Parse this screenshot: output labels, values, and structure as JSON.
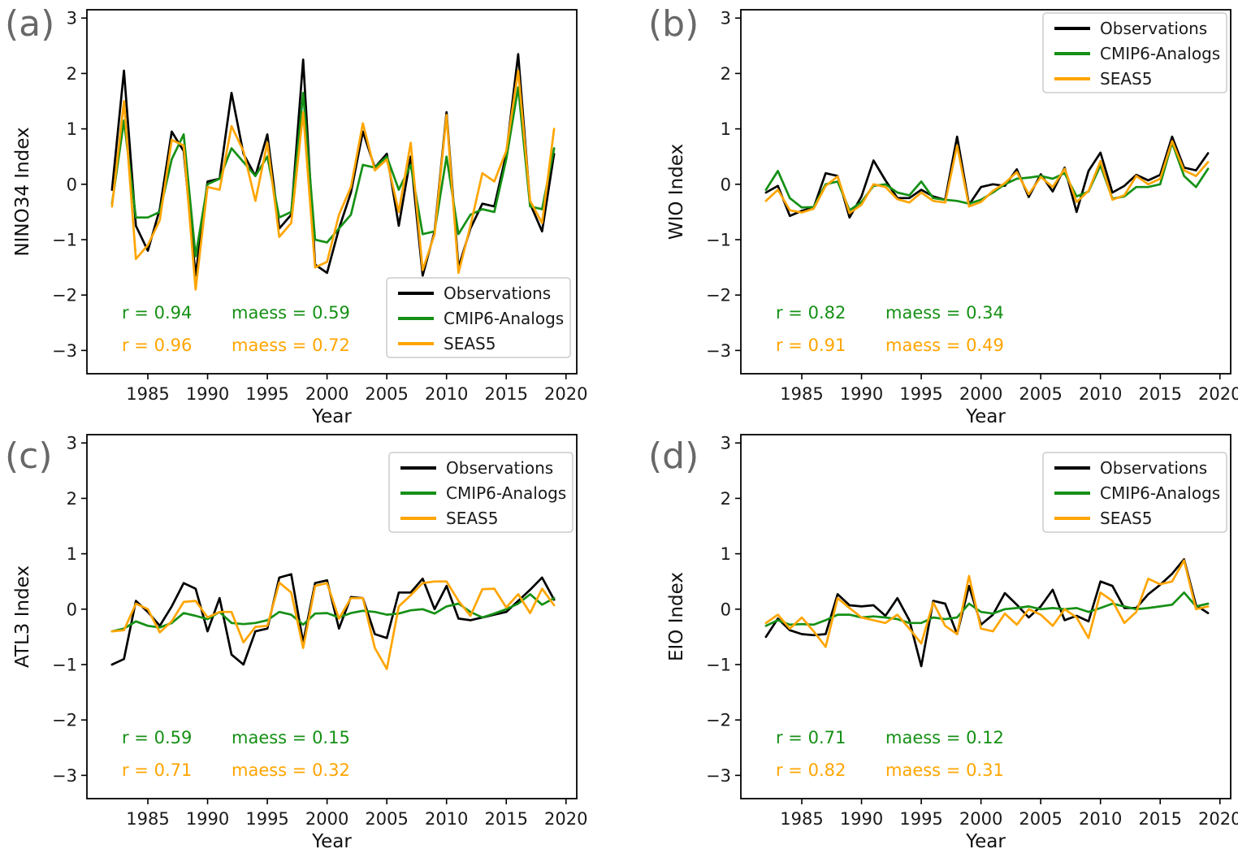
{
  "figure": {
    "xlabel": "Year",
    "x_ticks": [
      1985,
      1990,
      1995,
      2000,
      2005,
      2010,
      2015,
      2020
    ],
    "y_ticks": [
      -3,
      -2,
      -1,
      0,
      1,
      2,
      3
    ],
    "xlim": [
      1979.9,
      2020.9
    ],
    "ylim": [
      -3.42,
      3.15
    ],
    "grid": false,
    "colors": {
      "observations": "#000000",
      "cmip6": "#159015",
      "seas5": "#FFA500",
      "panel_letter": "#686868",
      "legend_border": "#cccccc",
      "tick_text": "#1a1a1a"
    },
    "legend_entries": [
      "Observations",
      "CMIP6-Analogs",
      "SEAS5"
    ],
    "years": [
      1982,
      1983,
      1984,
      1985,
      1986,
      1987,
      1988,
      1989,
      1990,
      1991,
      1992,
      1993,
      1994,
      1995,
      1996,
      1997,
      1998,
      1999,
      2000,
      2001,
      2002,
      2003,
      2004,
      2005,
      2006,
      2007,
      2008,
      2009,
      2010,
      2011,
      2012,
      2013,
      2014,
      2015,
      2016,
      2017,
      2018,
      2019
    ]
  },
  "chart_data": [
    {
      "type": "line",
      "panel_label": "(a)",
      "ylabel": "NINO34 Index",
      "xlabel": "Year",
      "legend_position": "lower-right",
      "stats": {
        "green_r": "r = 0.94",
        "green_maess": "maess = 0.59",
        "orange_r": "r = 0.96",
        "orange_maess": "maess = 0.72"
      },
      "series": [
        {
          "name": "Observations",
          "color_key": "observations",
          "values": [
            -0.1,
            2.05,
            -0.75,
            -1.2,
            -0.45,
            0.95,
            0.6,
            -1.65,
            0.05,
            0.1,
            1.65,
            0.55,
            0.15,
            0.9,
            -0.8,
            -0.55,
            2.25,
            -1.45,
            -1.6,
            -0.8,
            -0.15,
            0.95,
            0.3,
            0.55,
            -0.75,
            0.5,
            -1.65,
            -0.85,
            1.3,
            -1.5,
            -0.8,
            -0.35,
            -0.4,
            0.55,
            2.35,
            -0.35,
            -0.85,
            0.55
          ]
        },
        {
          "name": "CMIP6-Analogs",
          "color_key": "cmip6",
          "values": [
            -0.35,
            1.15,
            -0.6,
            -0.6,
            -0.5,
            0.45,
            0.9,
            -1.3,
            0.0,
            0.1,
            0.65,
            0.4,
            0.15,
            0.5,
            -0.6,
            -0.5,
            1.65,
            -1.0,
            -1.05,
            -0.8,
            -0.55,
            0.35,
            0.3,
            0.5,
            -0.1,
            0.35,
            -0.9,
            -0.85,
            0.5,
            -0.9,
            -0.55,
            -0.45,
            -0.5,
            0.45,
            1.75,
            -0.4,
            -0.45,
            0.65
          ]
        },
        {
          "name": "SEAS5",
          "color_key": "seas5",
          "values": [
            -0.4,
            1.5,
            -1.35,
            -1.1,
            -0.65,
            0.8,
            0.7,
            -1.9,
            -0.05,
            -0.1,
            1.05,
            0.6,
            -0.3,
            0.75,
            -0.95,
            -0.7,
            1.3,
            -1.5,
            -1.4,
            -0.55,
            -0.05,
            1.1,
            0.25,
            0.45,
            -0.5,
            0.75,
            -1.55,
            -0.9,
            1.25,
            -1.6,
            -0.75,
            0.2,
            0.05,
            0.6,
            2.05,
            -0.3,
            -0.7,
            1.0
          ]
        }
      ]
    },
    {
      "type": "line",
      "panel_label": "(b)",
      "ylabel": "WIO Index",
      "xlabel": "Year",
      "legend_position": "upper-right",
      "stats": {
        "green_r": "r = 0.82",
        "green_maess": "maess = 0.34",
        "orange_r": "r = 0.91",
        "orange_maess": "maess = 0.49"
      },
      "series": [
        {
          "name": "Observations",
          "color_key": "observations",
          "values": [
            -0.15,
            -0.03,
            -0.57,
            -0.48,
            -0.42,
            0.2,
            0.15,
            -0.6,
            -0.22,
            0.43,
            0.07,
            -0.25,
            -0.25,
            -0.1,
            -0.22,
            -0.28,
            0.86,
            -0.37,
            -0.05,
            0.0,
            -0.03,
            0.27,
            -0.23,
            0.18,
            -0.13,
            0.3,
            -0.5,
            0.24,
            0.57,
            -0.15,
            -0.03,
            0.17,
            0.07,
            0.17,
            0.86,
            0.3,
            0.25,
            0.56
          ]
        },
        {
          "name": "CMIP6-Analogs",
          "color_key": "cmip6",
          "values": [
            -0.1,
            0.24,
            -0.25,
            -0.42,
            -0.41,
            0.0,
            0.05,
            -0.47,
            -0.32,
            -0.03,
            0.0,
            -0.15,
            -0.2,
            0.05,
            -0.25,
            -0.28,
            -0.3,
            -0.35,
            -0.28,
            -0.15,
            0.0,
            0.1,
            0.12,
            0.15,
            0.1,
            0.2,
            -0.22,
            -0.13,
            0.34,
            -0.26,
            -0.22,
            -0.05,
            -0.05,
            0.0,
            0.75,
            0.15,
            -0.05,
            0.28
          ]
        },
        {
          "name": "SEAS5",
          "color_key": "seas5",
          "values": [
            -0.3,
            -0.1,
            -0.47,
            -0.51,
            -0.44,
            -0.03,
            0.14,
            -0.52,
            -0.37,
            0.0,
            -0.05,
            -0.27,
            -0.33,
            -0.15,
            -0.3,
            -0.33,
            0.7,
            -0.4,
            -0.32,
            -0.12,
            0.02,
            0.22,
            -0.18,
            0.13,
            -0.05,
            0.28,
            -0.32,
            -0.12,
            0.42,
            -0.28,
            -0.2,
            0.15,
            0.0,
            0.1,
            0.78,
            0.25,
            0.15,
            0.4
          ]
        }
      ]
    },
    {
      "type": "line",
      "panel_label": "(c)",
      "ylabel": "ATL3 Index",
      "xlabel": "Year",
      "legend_position": "upper-right",
      "stats": {
        "green_r": "r = 0.59",
        "green_maess": "maess = 0.15",
        "orange_r": "r = 0.71",
        "orange_maess": "maess = 0.32"
      },
      "series": [
        {
          "name": "Observations",
          "color_key": "observations",
          "values": [
            -1.0,
            -0.9,
            0.15,
            -0.05,
            -0.3,
            0.05,
            0.47,
            0.37,
            -0.4,
            0.2,
            -0.82,
            -1.0,
            -0.4,
            -0.35,
            0.57,
            0.63,
            -0.6,
            0.47,
            0.52,
            -0.35,
            0.22,
            0.2,
            -0.45,
            -0.52,
            0.3,
            0.3,
            0.55,
            0.0,
            0.42,
            -0.17,
            -0.2,
            -0.15,
            -0.1,
            -0.05,
            0.15,
            0.35,
            0.57,
            0.17
          ]
        },
        {
          "name": "CMIP6-Analogs",
          "color_key": "cmip6",
          "values": [
            -0.4,
            -0.35,
            -0.22,
            -0.3,
            -0.33,
            -0.25,
            -0.07,
            -0.12,
            -0.18,
            -0.05,
            -0.25,
            -0.27,
            -0.25,
            -0.2,
            -0.05,
            -0.1,
            -0.28,
            -0.08,
            -0.07,
            -0.15,
            -0.07,
            -0.03,
            -0.05,
            -0.1,
            -0.08,
            -0.02,
            0.0,
            -0.08,
            0.05,
            0.1,
            -0.05,
            -0.15,
            -0.08,
            0.0,
            0.1,
            0.27,
            0.08,
            0.2
          ]
        },
        {
          "name": "SEAS5",
          "color_key": "seas5",
          "values": [
            -0.4,
            -0.38,
            0.1,
            0.0,
            -0.42,
            -0.22,
            0.13,
            0.15,
            -0.15,
            -0.05,
            -0.05,
            -0.6,
            -0.32,
            -0.3,
            0.48,
            0.3,
            -0.7,
            0.42,
            0.47,
            -0.17,
            0.2,
            0.2,
            -0.7,
            -1.08,
            0.05,
            0.25,
            0.47,
            0.5,
            0.5,
            0.15,
            -0.12,
            0.36,
            0.37,
            0.03,
            0.27,
            -0.07,
            0.37,
            0.07
          ]
        }
      ]
    },
    {
      "type": "line",
      "panel_label": "(d)",
      "ylabel": "EIO Index",
      "xlabel": "Year",
      "legend_position": "upper-right",
      "stats": {
        "green_r": "r = 0.71",
        "green_maess": "maess = 0.12",
        "orange_r": "r = 0.82",
        "orange_maess": "maess = 0.31"
      },
      "series": [
        {
          "name": "Observations",
          "color_key": "observations",
          "values": [
            -0.5,
            -0.17,
            -0.38,
            -0.45,
            -0.47,
            -0.45,
            0.27,
            0.07,
            0.05,
            0.07,
            -0.12,
            0.2,
            -0.2,
            -1.03,
            0.15,
            0.1,
            -0.45,
            0.42,
            -0.28,
            -0.1,
            0.29,
            0.08,
            -0.15,
            0.05,
            0.35,
            -0.2,
            -0.12,
            -0.22,
            0.5,
            0.42,
            0.02,
            0.02,
            0.27,
            0.44,
            0.64,
            0.9,
            0.07,
            -0.07
          ]
        },
        {
          "name": "CMIP6-Analogs",
          "color_key": "cmip6",
          "values": [
            -0.3,
            -0.2,
            -0.28,
            -0.27,
            -0.28,
            -0.2,
            -0.1,
            -0.1,
            -0.15,
            -0.13,
            -0.15,
            -0.18,
            -0.25,
            -0.25,
            -0.15,
            -0.18,
            -0.15,
            0.1,
            -0.05,
            -0.08,
            0.0,
            0.02,
            0.05,
            0.0,
            0.02,
            0.0,
            0.02,
            -0.05,
            0.02,
            0.1,
            0.05,
            0.0,
            0.02,
            0.05,
            0.08,
            0.3,
            0.05,
            0.1
          ]
        },
        {
          "name": "SEAS5",
          "color_key": "seas5",
          "values": [
            -0.25,
            -0.1,
            -0.35,
            -0.15,
            -0.4,
            -0.68,
            0.2,
            0.02,
            -0.15,
            -0.2,
            -0.25,
            -0.1,
            -0.35,
            -0.62,
            0.12,
            -0.3,
            -0.45,
            0.6,
            -0.35,
            -0.4,
            -0.08,
            -0.28,
            0.0,
            -0.1,
            -0.3,
            0.0,
            -0.15,
            -0.52,
            0.3,
            0.15,
            -0.25,
            -0.05,
            0.55,
            0.45,
            0.5,
            0.88,
            0.0,
            0.05
          ]
        }
      ]
    }
  ]
}
